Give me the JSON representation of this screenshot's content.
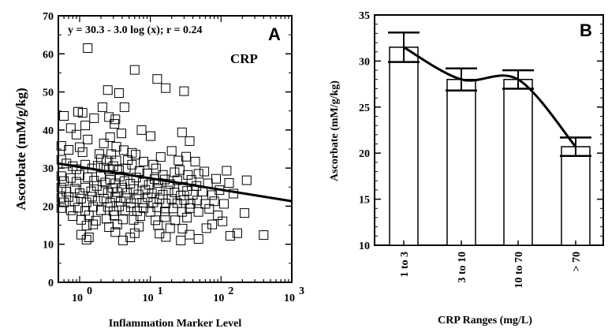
{
  "chart_data": [
    {
      "panel": "A",
      "type": "scatter",
      "xlabel": "Inflammation Marker Level",
      "ylabel": "Ascorbate (mM/g/kg)",
      "xscale": "log",
      "xlim": [
        0.5,
        1000
      ],
      "ylim": [
        0,
        70
      ],
      "x_ticks": [
        {
          "value": 1,
          "base": "10",
          "exp": "0"
        },
        {
          "value": 10,
          "base": "10",
          "exp": "1"
        },
        {
          "value": 100,
          "base": "10",
          "exp": "2"
        },
        {
          "value": 1000,
          "base": "10",
          "exp": "3"
        }
      ],
      "y_ticks": [
        "0",
        "10",
        "20",
        "30",
        "40",
        "50",
        "60",
        "70"
      ],
      "annotations": {
        "equation": "y = 30.3 - 3.0 log (x);  r = 0.24",
        "marker": "CRP"
      },
      "regression": {
        "intercept": 30.3,
        "slope": -3.0
      },
      "grid": false,
      "points": [
        [
          1.3,
          61.5
        ],
        [
          6.0,
          55.8
        ],
        [
          12.5,
          53.4
        ],
        [
          16.5,
          51.0
        ],
        [
          30.0,
          50.2
        ],
        [
          2.5,
          50.5
        ],
        [
          3.6,
          49.7
        ],
        [
          4.3,
          46.0
        ],
        [
          2.1,
          46.0
        ],
        [
          0.95,
          44.8
        ],
        [
          1.1,
          44.5
        ],
        [
          1.6,
          43.1
        ],
        [
          2.6,
          43.4
        ],
        [
          3.2,
          42.8
        ],
        [
          0.6,
          43.7
        ],
        [
          3.1,
          41.6
        ],
        [
          0.75,
          40.5
        ],
        [
          0.9,
          38.8
        ],
        [
          1.2,
          41.2
        ],
        [
          1.3,
          37.5
        ],
        [
          2.2,
          36.5
        ],
        [
          3.3,
          35.6
        ],
        [
          4.2,
          34.7
        ],
        [
          5.5,
          34.0
        ],
        [
          2.7,
          38.1
        ],
        [
          3.9,
          39.1
        ],
        [
          7.5,
          40.0
        ],
        [
          10.1,
          38.4
        ],
        [
          28.0,
          39.4
        ],
        [
          36.0,
          37.1
        ],
        [
          0.55,
          35.8
        ],
        [
          0.7,
          34.8
        ],
        [
          1.0,
          35.5
        ],
        [
          1.1,
          34.2
        ],
        [
          1.9,
          33.7
        ],
        [
          2.0,
          32.4
        ],
        [
          2.4,
          32.0
        ],
        [
          2.8,
          33.7
        ],
        [
          3.3,
          32.0
        ],
        [
          4.8,
          32.1
        ],
        [
          6.2,
          33.5
        ],
        [
          8.0,
          31.7
        ],
        [
          11.0,
          30.9
        ],
        [
          14.0,
          32.9
        ],
        [
          20.0,
          34.5
        ],
        [
          25.0,
          32.0
        ],
        [
          32.0,
          33.0
        ],
        [
          43.0,
          31.7
        ],
        [
          0.55,
          32.2
        ],
        [
          0.65,
          31.2
        ],
        [
          0.8,
          30.5
        ],
        [
          0.9,
          29.7
        ],
        [
          1.2,
          30.9
        ],
        [
          1.5,
          29.9
        ],
        [
          1.8,
          30.6
        ],
        [
          2.2,
          30.1
        ],
        [
          2.6,
          29.6
        ],
        [
          3.0,
          30.5
        ],
        [
          3.6,
          29.5
        ],
        [
          4.5,
          29.9
        ],
        [
          5.5,
          30.9
        ],
        [
          7.0,
          29.2
        ],
        [
          9.0,
          28.6
        ],
        [
          12.0,
          29.9
        ],
        [
          15.0,
          28.2
        ],
        [
          22.0,
          28.9
        ],
        [
          26.0,
          29.5
        ],
        [
          34.0,
          28.2
        ],
        [
          48.0,
          28.5
        ],
        [
          58.0,
          29.1
        ],
        [
          120.0,
          29.3
        ],
        [
          0.55,
          27.9
        ],
        [
          0.6,
          26.6
        ],
        [
          0.75,
          27.4
        ],
        [
          0.9,
          26.4
        ],
        [
          1.0,
          28.2
        ],
        [
          1.3,
          27.6
        ],
        [
          1.6,
          26.7
        ],
        [
          2.0,
          27.9
        ],
        [
          2.3,
          26.2
        ],
        [
          2.7,
          26.9
        ],
        [
          3.2,
          26.0
        ],
        [
          3.7,
          27.8
        ],
        [
          4.3,
          26.6
        ],
        [
          5.2,
          25.9
        ],
        [
          6.3,
          27.5
        ],
        [
          7.8,
          26.2
        ],
        [
          9.5,
          25.6
        ],
        [
          11.5,
          27.1
        ],
        [
          13.0,
          26.1
        ],
        [
          16.0,
          27.0
        ],
        [
          19.0,
          25.8
        ],
        [
          24.0,
          26.8
        ],
        [
          29.0,
          25.1
        ],
        [
          38.0,
          26.9
        ],
        [
          45.0,
          25.3
        ],
        [
          65.0,
          26.0
        ],
        [
          85.0,
          27.2
        ],
        [
          130.0,
          26.1
        ],
        [
          230.0,
          26.8
        ],
        [
          0.55,
          24.9
        ],
        [
          0.65,
          23.8
        ],
        [
          0.85,
          24.6
        ],
        [
          1.0,
          23.4
        ],
        [
          1.2,
          24.9
        ],
        [
          1.45,
          23.9
        ],
        [
          1.75,
          25.3
        ],
        [
          2.1,
          24.2
        ],
        [
          2.5,
          23.5
        ],
        [
          2.9,
          24.8
        ],
        [
          3.4,
          23.7
        ],
        [
          4.0,
          24.9
        ],
        [
          4.7,
          23.5
        ],
        [
          5.8,
          24.5
        ],
        [
          6.8,
          23.1
        ],
        [
          8.5,
          24.3
        ],
        [
          10.5,
          23.4
        ],
        [
          12.5,
          24.5
        ],
        [
          15.0,
          23.0
        ],
        [
          18.0,
          24.1
        ],
        [
          22.0,
          23.6
        ],
        [
          27.0,
          22.8
        ],
        [
          33.0,
          24.0
        ],
        [
          40.0,
          23.0
        ],
        [
          55.0,
          23.8
        ],
        [
          75.0,
          22.9
        ],
        [
          95.0,
          24.2
        ],
        [
          150.0,
          23.3
        ],
        [
          0.55,
          22.2
        ],
        [
          0.6,
          21.0
        ],
        [
          0.7,
          22.4
        ],
        [
          0.85,
          21.3
        ],
        [
          1.05,
          22.0
        ],
        [
          1.25,
          21.0
        ],
        [
          1.5,
          22.5
        ],
        [
          1.8,
          21.4
        ],
        [
          2.2,
          22.0
        ],
        [
          2.7,
          20.9
        ],
        [
          3.2,
          22.3
        ],
        [
          3.8,
          21.2
        ],
        [
          4.5,
          22.1
        ],
        [
          5.3,
          20.8
        ],
        [
          6.4,
          21.9
        ],
        [
          7.7,
          20.9
        ],
        [
          9.2,
          22.3
        ],
        [
          11.0,
          21.0
        ],
        [
          13.5,
          21.8
        ],
        [
          16.5,
          20.7
        ],
        [
          20.0,
          21.9
        ],
        [
          24.0,
          20.8
        ],
        [
          30.0,
          21.6
        ],
        [
          37.0,
          20.6
        ],
        [
          46.0,
          21.5
        ],
        [
          60.0,
          20.6
        ],
        [
          80.0,
          21.3
        ],
        [
          110.0,
          20.6
        ],
        [
          0.55,
          19.5
        ],
        [
          0.75,
          18.9
        ],
        [
          0.95,
          19.6
        ],
        [
          1.2,
          18.8
        ],
        [
          1.55,
          19.8
        ],
        [
          2.0,
          18.9
        ],
        [
          2.5,
          19.8
        ],
        [
          3.0,
          18.7
        ],
        [
          3.6,
          19.9
        ],
        [
          4.4,
          18.9
        ],
        [
          5.3,
          19.7
        ],
        [
          6.5,
          18.7
        ],
        [
          8.0,
          19.5
        ],
        [
          10.0,
          18.5
        ],
        [
          12.5,
          19.7
        ],
        [
          16.0,
          18.6
        ],
        [
          21.0,
          19.4
        ],
        [
          28.0,
          18.5
        ],
        [
          36.0,
          19.5
        ],
        [
          48.0,
          18.5
        ],
        [
          68.0,
          19.3
        ],
        [
          90.0,
          17.6
        ],
        [
          0.8,
          17.4
        ],
        [
          1.05,
          16.4
        ],
        [
          1.35,
          17.6
        ],
        [
          1.7,
          16.2
        ],
        [
          2.4,
          16.7
        ],
        [
          3.1,
          17.6
        ],
        [
          4.1,
          16.5
        ],
        [
          5.8,
          16.4
        ],
        [
          7.2,
          17.4
        ],
        [
          11.8,
          16.3
        ],
        [
          16.2,
          17.1
        ],
        [
          22.5,
          16.3
        ],
        [
          33.0,
          17.0
        ],
        [
          75.0,
          15.2
        ],
        [
          105.0,
          16.0
        ],
        [
          1.25,
          14.9
        ],
        [
          1.55,
          15.2
        ],
        [
          2.6,
          14.5
        ],
        [
          3.4,
          15.2
        ],
        [
          6.9,
          14.6
        ],
        [
          12.8,
          15.0
        ],
        [
          19.0,
          14.2
        ],
        [
          28.5,
          14.1
        ],
        [
          62.0,
          14.2
        ],
        [
          215.0,
          18.2
        ],
        [
          1.05,
          12.5
        ],
        [
          1.35,
          11.8
        ],
        [
          1.25,
          11.2
        ],
        [
          3.2,
          13.2
        ],
        [
          5.2,
          11.8
        ],
        [
          4.1,
          11.0
        ],
        [
          6.0,
          12.9
        ],
        [
          13.5,
          12.8
        ],
        [
          16.6,
          11.9
        ],
        [
          27.0,
          11.0
        ],
        [
          36.0,
          12.5
        ],
        [
          48.0,
          11.4
        ],
        [
          135.0,
          12.2
        ],
        [
          170.0,
          12.9
        ],
        [
          400.0,
          12.4
        ]
      ]
    },
    {
      "panel": "B",
      "type": "bar",
      "xlabel": "CRP Ranges (mg/L)",
      "ylabel": "Ascorbate (mM/g/kg)",
      "categories": [
        "1 to 3",
        "3 to 10",
        "10 to 70",
        "> 70"
      ],
      "values": [
        31.5,
        28.0,
        28.0,
        20.7
      ],
      "error": [
        1.6,
        1.2,
        1.0,
        1.0
      ],
      "ylim": [
        10,
        35
      ],
      "y_ticks": [
        "10",
        "15",
        "20",
        "25",
        "30",
        "35"
      ],
      "grid": false
    }
  ]
}
